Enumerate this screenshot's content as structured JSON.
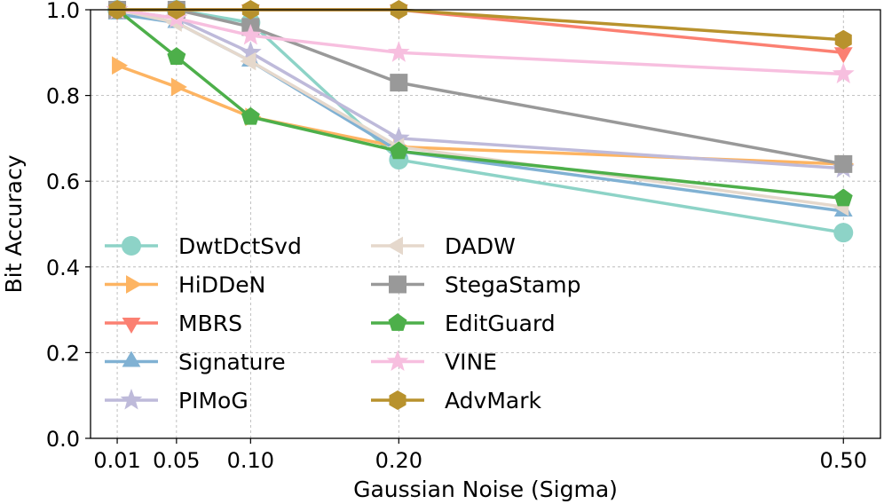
{
  "chart_data": {
    "type": "line",
    "xlabel": "Gaussian Noise (Sigma)",
    "ylabel": "Bit Accuracy",
    "x": [
      0.01,
      0.05,
      0.1,
      0.2,
      0.5
    ],
    "x_tick_labels": [
      "0.01",
      "0.05",
      "0.10",
      "0.20",
      "0.50"
    ],
    "y_ticks": [
      0.0,
      0.2,
      0.4,
      0.6,
      0.8,
      1.0
    ],
    "y_tick_labels": [
      "0.0",
      "0.2",
      "0.4",
      "0.6",
      "0.8",
      "1.0"
    ],
    "xlim": [
      -0.008,
      0.525
    ],
    "ylim": [
      0.0,
      1.0
    ],
    "grid": true,
    "legend_position": "lower-left",
    "series": [
      {
        "name": "DwtDctSvd",
        "color": "#8dd3c7",
        "marker": "circle",
        "values": [
          1.0,
          1.0,
          0.97,
          0.65,
          0.48
        ]
      },
      {
        "name": "HiDDeN",
        "color": "#fdb462",
        "marker": "triangle-right",
        "values": [
          0.87,
          0.82,
          0.75,
          0.68,
          0.64
        ]
      },
      {
        "name": "MBRS",
        "color": "#fb8072",
        "marker": "triangle-down",
        "values": [
          1.0,
          1.0,
          1.0,
          1.0,
          0.9
        ]
      },
      {
        "name": "Signature",
        "color": "#80b1d3",
        "marker": "triangle-up",
        "values": [
          0.99,
          0.97,
          0.88,
          0.67,
          0.53
        ]
      },
      {
        "name": "PIMoG",
        "color": "#bebada",
        "marker": "star",
        "values": [
          1.0,
          0.98,
          0.9,
          0.7,
          0.63
        ]
      },
      {
        "name": "DADW",
        "color": "#e5d8cc",
        "marker": "triangle-left",
        "values": [
          1.0,
          0.97,
          0.88,
          0.68,
          0.54
        ]
      },
      {
        "name": "StegaStamp",
        "color": "#999999",
        "marker": "square",
        "values": [
          1.0,
          1.0,
          0.96,
          0.83,
          0.64
        ]
      },
      {
        "name": "EditGuard",
        "color": "#4daf4a",
        "marker": "pentagon",
        "values": [
          1.0,
          0.89,
          0.75,
          0.67,
          0.56
        ]
      },
      {
        "name": "VINE",
        "color": "#f7bfdf",
        "marker": "star",
        "values": [
          1.0,
          0.98,
          0.94,
          0.9,
          0.85
        ]
      },
      {
        "name": "AdvMark",
        "color": "#b8922d",
        "marker": "hexagon",
        "values": [
          1.0,
          1.0,
          1.0,
          1.0,
          0.93
        ]
      }
    ]
  }
}
